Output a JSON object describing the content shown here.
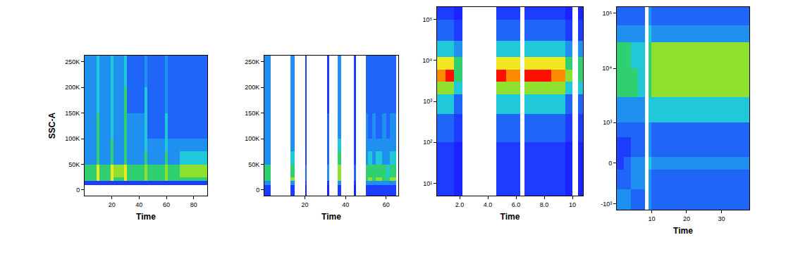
{
  "chart_data": [
    {
      "type": "heatmap",
      "x_label": "Time",
      "y_label": "SSC-A",
      "xlim": [
        0,
        90
      ],
      "xticks": [
        20,
        40,
        60,
        80
      ],
      "ylim": [
        -11000,
        262144
      ],
      "yticks": [
        0,
        {
          "value": 50000,
          "label": "50K"
        },
        {
          "value": 100000,
          "label": "100K"
        },
        {
          "value": 150000,
          "label": "150K"
        },
        {
          "value": 200000,
          "label": "200K"
        },
        {
          "value": 250000,
          "label": "250K"
        }
      ],
      "x_bins": [
        0,
        3,
        9,
        11,
        19,
        21,
        29,
        31,
        44,
        46,
        59,
        61,
        70,
        80,
        90
      ],
      "y_bins": [
        -11000,
        10000,
        18000,
        25000,
        50000,
        75000,
        100000,
        150000,
        200000,
        262144
      ],
      "zlim": [
        0,
        5
      ],
      "z": [
        [
          0,
          0,
          0,
          0,
          0,
          0,
          0,
          0,
          0,
          0,
          0,
          0,
          0,
          0
        ],
        [
          1,
          1,
          1,
          1,
          1,
          1,
          1,
          1,
          1,
          1,
          1,
          1,
          1,
          1
        ],
        [
          3,
          3,
          4,
          3,
          4,
          3,
          4,
          3,
          3.5,
          3,
          3.5,
          3,
          3,
          3
        ],
        [
          3,
          3,
          4,
          3,
          4,
          3.5,
          4,
          3,
          3.5,
          3,
          3.5,
          3,
          3.5,
          3.5
        ],
        [
          2,
          2,
          3,
          2,
          3,
          2,
          3,
          2,
          3,
          2,
          3,
          2,
          2.5,
          2.5
        ],
        [
          2,
          2,
          3,
          2,
          3,
          2,
          3,
          2,
          2.5,
          2,
          2.5,
          2,
          2,
          2
        ],
        [
          2,
          2,
          3,
          2,
          2.5,
          2,
          3,
          2,
          2.5,
          1.5,
          2.5,
          1.5,
          1.5,
          1.5
        ],
        [
          2,
          2,
          2.5,
          2,
          2.5,
          2,
          3,
          1.5,
          2.5,
          1.5,
          2,
          1.5,
          1.5,
          1.5
        ],
        [
          2,
          2,
          2.5,
          2,
          2.5,
          2,
          2.5,
          1.5,
          2,
          1.5,
          2,
          1.5,
          1.5,
          1.5
        ]
      ]
    },
    {
      "type": "heatmap",
      "x_label": "Time",
      "xlim": [
        0,
        66
      ],
      "xticks": [
        20,
        40,
        60
      ],
      "ylim": [
        -11000,
        262144
      ],
      "yticks": [
        0,
        {
          "value": 50000,
          "label": "50K"
        },
        {
          "value": 100000,
          "label": "100K"
        },
        {
          "value": 150000,
          "label": "150K"
        },
        {
          "value": 200000,
          "label": "200K"
        },
        {
          "value": 250000,
          "label": "250K"
        }
      ],
      "x_bins": [
        0,
        3,
        13,
        15,
        20,
        21,
        31,
        32,
        36,
        38,
        44,
        45,
        50,
        51,
        53,
        55,
        58,
        60,
        62,
        65,
        66
      ],
      "y_bins": [
        -11000,
        10000,
        18000,
        25000,
        50000,
        75000,
        100000,
        150000,
        200000,
        262144
      ],
      "zlim": [
        0,
        5
      ],
      "z": [
        [
          1,
          0,
          1,
          0,
          0.5,
          0,
          0.5,
          0,
          1,
          0,
          0.5,
          0,
          1,
          1,
          1,
          1,
          1,
          1,
          1,
          0
        ],
        [
          2,
          0,
          2,
          0,
          1,
          0,
          1,
          0,
          2,
          0,
          1,
          0,
          2,
          2,
          2,
          2,
          2,
          2,
          2,
          0
        ],
        [
          3,
          0,
          3.5,
          0,
          1.5,
          0,
          2,
          0,
          3.5,
          0,
          1.5,
          0,
          3,
          3.5,
          3,
          3.5,
          3,
          3,
          3.5,
          0
        ],
        [
          3,
          0,
          3,
          0,
          1.5,
          0,
          2,
          0,
          3.5,
          0,
          1.5,
          0,
          3,
          3,
          3,
          3,
          3,
          2.5,
          3,
          0
        ],
        [
          2,
          0,
          2.5,
          0,
          1,
          0,
          1.5,
          0,
          3,
          0,
          1,
          0,
          2,
          2.5,
          2,
          2.5,
          2,
          2,
          2.5,
          0
        ],
        [
          2,
          0,
          2,
          0,
          1,
          0,
          1.5,
          0,
          2.5,
          0,
          1,
          0,
          2,
          2,
          2,
          2,
          2,
          2,
          2,
          0
        ],
        [
          2,
          0,
          2,
          0,
          1,
          0,
          1.5,
          0,
          2,
          0,
          1,
          0,
          2,
          1.5,
          2,
          1.5,
          2,
          1.5,
          2,
          0
        ],
        [
          2,
          0,
          2,
          0,
          1,
          0,
          1,
          0,
          2,
          0,
          1,
          0,
          1.5,
          1.5,
          1.5,
          1.5,
          1.5,
          1.5,
          1.5,
          0
        ],
        [
          2,
          0,
          2,
          0,
          1,
          0,
          1,
          0,
          2,
          0,
          1,
          0,
          1.5,
          1.5,
          1.5,
          1.5,
          1.5,
          1.5,
          1.5,
          0
        ]
      ]
    },
    {
      "type": "heatmap",
      "x_label": "Time",
      "log": "y",
      "xlim": [
        0.4,
        10.75
      ],
      "xticks": [
        {
          "value": 2,
          "label": "2.0"
        },
        {
          "value": 4,
          "label": "4.0"
        },
        {
          "value": 6,
          "label": "6.0"
        },
        {
          "value": 8,
          "label": "8.0"
        },
        10
      ],
      "ylim": [
        5,
        200000
      ],
      "yticks": [
        {
          "value": 10,
          "label": "10¹"
        },
        {
          "value": 100,
          "label": "10²"
        },
        {
          "value": 1000,
          "label": "10³"
        },
        {
          "value": 10000,
          "label": "10⁴"
        },
        {
          "value": 100000,
          "label": "10⁵"
        }
      ],
      "x_bins": [
        0.4,
        1.0,
        1.6,
        2.2,
        4.6,
        5.3,
        6.3,
        6.6,
        7.5,
        8.5,
        9.5,
        10.0,
        10.4,
        10.75
      ],
      "y_bins": [
        5,
        20,
        100,
        500,
        1500,
        3000,
        6000,
        12000,
        30000,
        100000,
        200000
      ],
      "zlim": [
        0,
        5
      ],
      "z": [
        [
          1,
          1,
          0.5,
          0,
          1,
          1,
          0,
          1,
          1,
          1,
          0.5,
          0,
          0.5
        ],
        [
          1,
          1,
          0.5,
          0,
          1,
          1,
          0,
          1,
          1,
          1,
          0.5,
          0,
          0.5
        ],
        [
          1.5,
          1.5,
          1,
          0,
          1.5,
          1.5,
          0,
          1.5,
          1.5,
          1.5,
          1,
          0,
          1
        ],
        [
          2.5,
          2.5,
          1.5,
          0,
          2.5,
          2.5,
          0,
          2.5,
          2.5,
          2.5,
          1.5,
          0,
          1.5
        ],
        [
          3.5,
          3.5,
          2.5,
          0,
          3.5,
          3.5,
          0,
          3.5,
          3.5,
          3.5,
          2.5,
          0,
          2.5
        ],
        [
          4.5,
          5,
          3,
          0,
          5,
          4.5,
          0,
          5,
          5,
          4.5,
          3.5,
          0,
          3
        ],
        [
          4,
          4,
          3,
          0,
          4,
          4,
          0,
          4,
          4,
          4,
          3,
          0,
          3
        ],
        [
          2.5,
          2.5,
          2,
          0,
          2.5,
          2.5,
          0,
          2.5,
          2.5,
          2.5,
          2,
          0,
          2
        ],
        [
          1.5,
          1.5,
          1,
          0,
          1.5,
          1.5,
          0,
          1.5,
          1.5,
          1.5,
          1,
          0,
          1
        ],
        [
          1,
          1,
          0.5,
          0,
          1,
          1,
          0,
          1,
          1,
          1,
          0.5,
          0,
          0.5
        ]
      ]
    },
    {
      "type": "heatmap",
      "x_label": "Time",
      "log": "y",
      "xlim": [
        0,
        38
      ],
      "xticks": [
        10,
        20,
        30
      ],
      "ylim": [
        -1300,
        130000
      ],
      "yticks": [
        {
          "value": -1000,
          "label": "-10³"
        },
        0,
        {
          "value": 1000,
          "label": "10³"
        },
        {
          "value": 10000,
          "label": "10⁴"
        },
        {
          "value": 100000,
          "label": "10⁵"
        }
      ],
      "x_bins": [
        0,
        2,
        4,
        6,
        8,
        9,
        10,
        15,
        20,
        25,
        30,
        35,
        38
      ],
      "y_bins": [
        -1300,
        -500,
        -100,
        100,
        500,
        1000,
        3000,
        10000,
        30000,
        60000,
        130000
      ],
      "zlim": [
        0,
        5
      ],
      "z": [
        [
          2,
          2,
          1.5,
          1.5,
          0,
          2,
          1.5,
          1.5,
          1.5,
          1.5,
          1.5,
          1.5
        ],
        [
          1.5,
          1.5,
          2,
          2,
          0,
          2,
          1.5,
          1.5,
          1.5,
          1.5,
          1.5,
          1.5
        ],
        [
          1,
          1.5,
          2,
          2,
          0,
          2.5,
          2,
          2,
          2,
          2,
          2,
          2
        ],
        [
          1,
          1,
          1.5,
          1.5,
          0,
          2,
          1.5,
          1.5,
          1.5,
          1.5,
          1.5,
          1.5
        ],
        [
          1.5,
          1.5,
          1.5,
          1.5,
          0,
          2,
          1.5,
          1.5,
          1.5,
          1.5,
          1.5,
          1.5
        ],
        [
          2,
          2,
          2,
          2,
          0,
          2.5,
          2.5,
          2.5,
          2.5,
          2.5,
          2.5,
          2.5
        ],
        [
          3,
          3,
          3,
          2.5,
          0,
          3,
          3.5,
          3.5,
          3.5,
          3.5,
          3.5,
          3.5
        ],
        [
          3,
          3,
          2.5,
          2.5,
          0,
          3,
          3.5,
          3.5,
          3.5,
          3.5,
          3.5,
          3.5
        ],
        [
          2,
          2,
          2,
          2,
          0,
          2.5,
          2,
          2,
          2,
          2,
          2,
          2
        ],
        [
          1.5,
          1.5,
          1.5,
          1.5,
          0,
          2,
          1.5,
          1.5,
          1.5,
          1.5,
          1.5,
          1.5
        ]
      ]
    }
  ]
}
